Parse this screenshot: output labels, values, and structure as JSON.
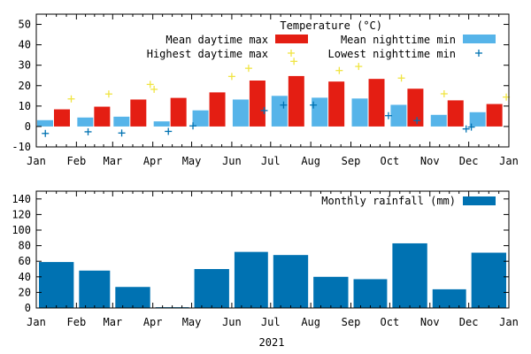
{
  "chart_data": [
    {
      "type": "bar",
      "title": "Temperature (°C)",
      "xlabel": "",
      "ylabel": "",
      "ylim": [
        -10,
        55
      ],
      "yticks": [
        "-10",
        "0",
        "10",
        "20",
        "30",
        "40",
        "50"
      ],
      "ytick_values": [
        -10,
        0,
        10,
        20,
        30,
        40,
        50
      ],
      "xtick_labels": [
        "Jan",
        "Feb",
        "Mar",
        "Apr",
        "May",
        "Jun",
        "Jul",
        "Aug",
        "Sep",
        "Oct",
        "Nov",
        "Dec",
        "Jan"
      ],
      "month_start_days": [
        0,
        31,
        59,
        90,
        120,
        151,
        181,
        212,
        243,
        273,
        304,
        334,
        365
      ],
      "days_in_year": 365,
      "legend_position": "top-right",
      "series": [
        {
          "name": "Mean daytime max",
          "kind": "bar",
          "color": "#e41e13",
          "values": [
            8.4,
            9.7,
            13.2,
            14.0,
            16.7,
            22.5,
            24.7,
            22.0,
            23.3,
            18.5,
            12.8,
            11.0
          ]
        },
        {
          "name": "Mean nighttime min",
          "kind": "bar",
          "color": "#56b4e9",
          "values": [
            3.1,
            4.4,
            4.8,
            2.5,
            7.9,
            13.2,
            15.0,
            14.1,
            13.7,
            10.6,
            5.7,
            7.0
          ]
        },
        {
          "name": "Highest daytime max",
          "kind": "scatter",
          "marker": "+",
          "color": "#f0e442",
          "points": [
            {
              "day": 27,
              "value": 13.5
            },
            {
              "day": 56,
              "value": 15.9
            },
            {
              "day": 88,
              "value": 20.6
            },
            {
              "day": 91,
              "value": 18.2
            },
            {
              "day": 151,
              "value": 24.5
            },
            {
              "day": 164,
              "value": 28.5
            },
            {
              "day": 199,
              "value": 31.9
            },
            {
              "day": 234,
              "value": 27.4
            },
            {
              "day": 249,
              "value": 29.4
            },
            {
              "day": 282,
              "value": 23.7
            },
            {
              "day": 315,
              "value": 16.0
            },
            {
              "day": 363,
              "value": 14.4
            }
          ]
        },
        {
          "name": "Lowest nighttime min",
          "kind": "scatter",
          "marker": "+",
          "color": "#0072b2",
          "points": [
            {
              "day": 7,
              "value": -3.4
            },
            {
              "day": 40,
              "value": -2.6
            },
            {
              "day": 66,
              "value": -3.2
            },
            {
              "day": 102,
              "value": -2.4
            },
            {
              "day": 121,
              "value": 0.3
            },
            {
              "day": 176,
              "value": 7.8
            },
            {
              "day": 191,
              "value": 10.5
            },
            {
              "day": 214,
              "value": 10.5
            },
            {
              "day": 272,
              "value": 5.3
            },
            {
              "day": 294,
              "value": 2.9
            },
            {
              "day": 332,
              "value": -1.2
            },
            {
              "day": 336,
              "value": -0.3
            }
          ]
        }
      ]
    },
    {
      "type": "bar",
      "title": "",
      "xlabel": "2021",
      "ylabel": "",
      "ylim": [
        0,
        150
      ],
      "yticks": [
        "0",
        "20",
        "40",
        "60",
        "80",
        "100",
        "120",
        "140"
      ],
      "ytick_values": [
        0,
        20,
        40,
        60,
        80,
        100,
        120,
        140
      ],
      "xtick_labels": [
        "Jan",
        "Feb",
        "Mar",
        "Apr",
        "May",
        "Jun",
        "Jul",
        "Aug",
        "Sep",
        "Oct",
        "Nov",
        "Dec",
        "Jan"
      ],
      "month_start_days": [
        0,
        31,
        59,
        90,
        120,
        151,
        181,
        212,
        243,
        273,
        304,
        334,
        365
      ],
      "days_in_year": 365,
      "legend_position": "top-right",
      "series": [
        {
          "name": "Monthly rainfall (mm)",
          "kind": "bar",
          "color": "#0072b2",
          "values": [
            59,
            48,
            27,
            1,
            50,
            72,
            68,
            40,
            37,
            83,
            24,
            71
          ]
        }
      ]
    }
  ]
}
